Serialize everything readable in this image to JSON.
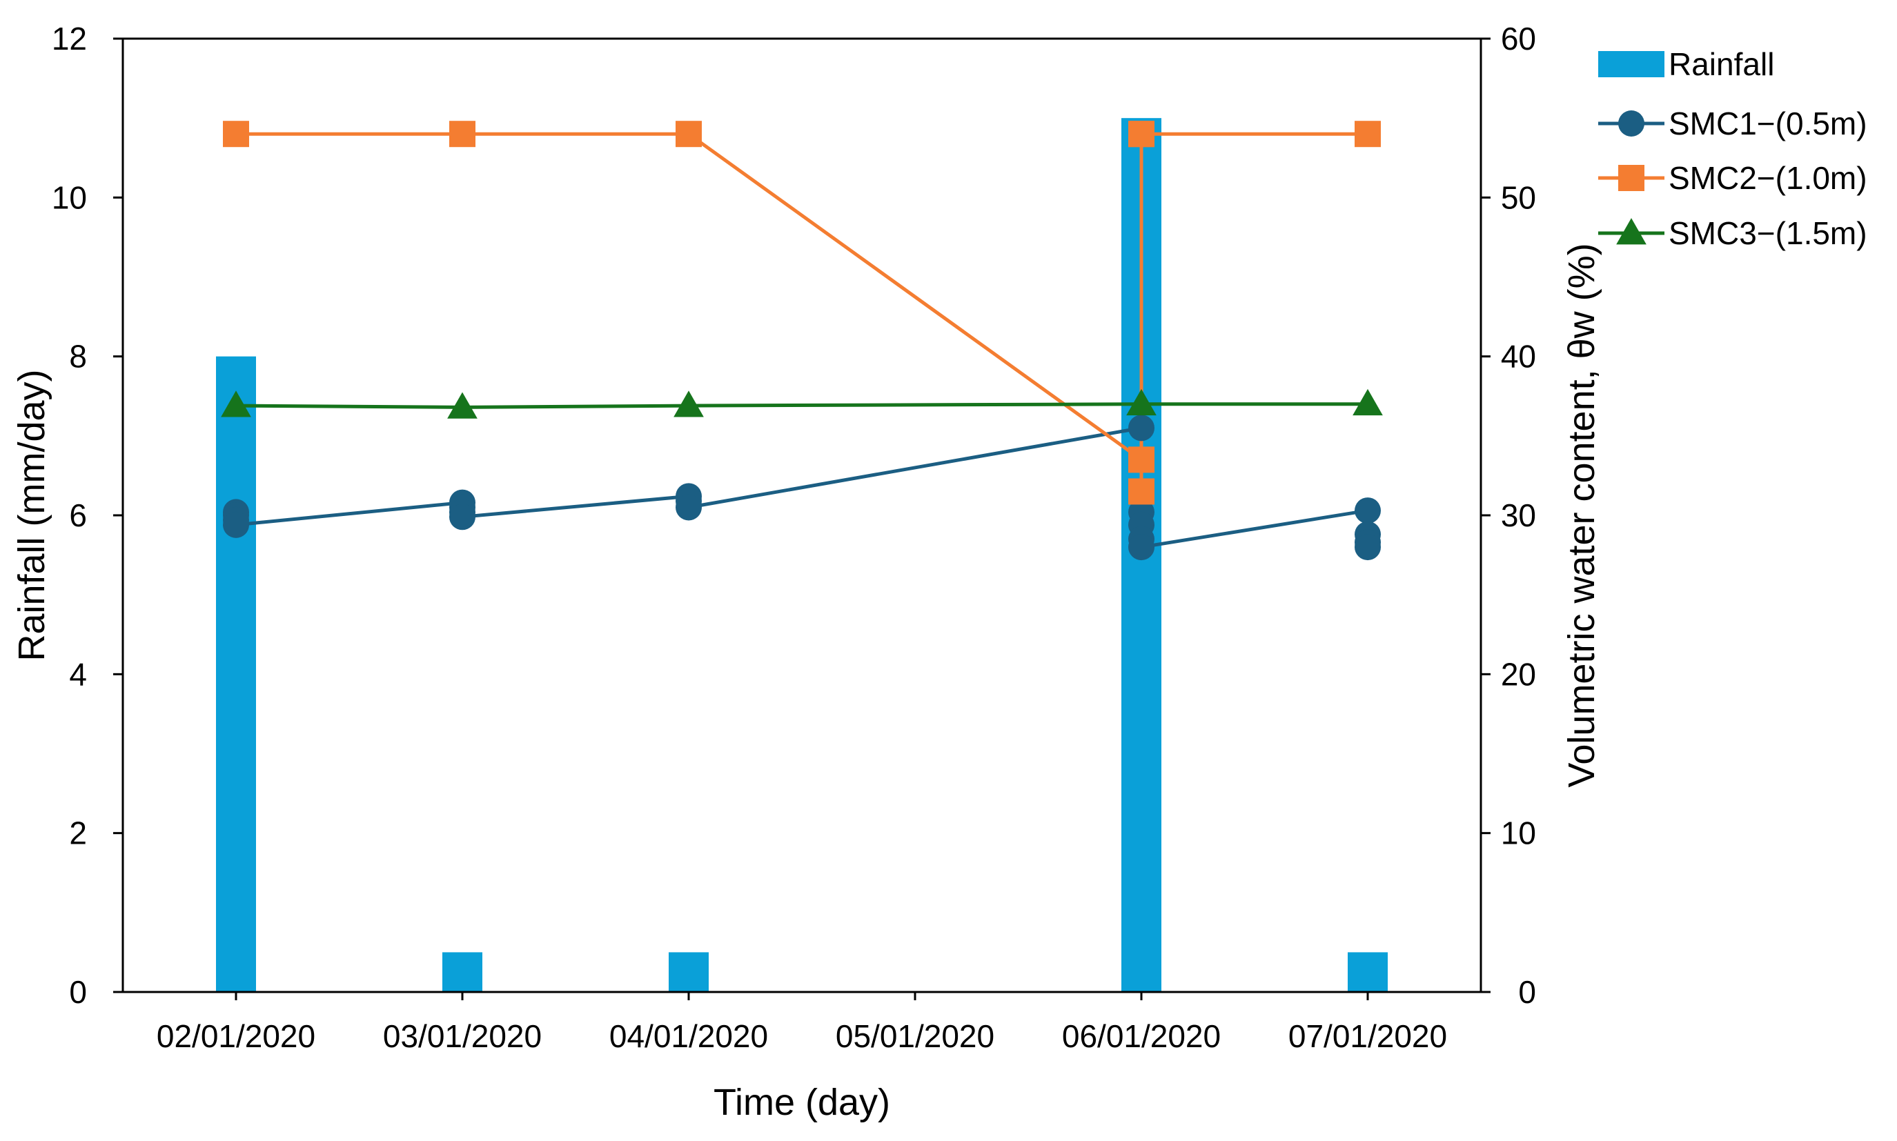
{
  "chart_data": {
    "type": "bar+line",
    "title": "",
    "xlabel": "Time (day)",
    "ylabel_left": "Rainfall (mm/day)",
    "ylabel_right": "Volumetric water content, θw (%)",
    "ylim_left": [
      0,
      12
    ],
    "ylim_right": [
      0,
      60
    ],
    "yticks_left": [
      "0",
      "2",
      "4",
      "6",
      "8",
      "10",
      "12"
    ],
    "yticks_right": [
      "0",
      "10",
      "20",
      "30",
      "40",
      "50",
      "60"
    ],
    "x_tick_labels": [
      "02/01/2020",
      "03/01/2020",
      "04/01/2020",
      "05/01/2020",
      "06/01/2020",
      "07/01/2020"
    ],
    "x_range": [
      0.5,
      6.5
    ],
    "grid": false,
    "legend_position": "top-right, outside plot",
    "rainfall": {
      "name": "Rainfall",
      "color": "#0aa0d8",
      "x": [
        1,
        2,
        3,
        5,
        6
      ],
      "values": [
        8,
        0.5,
        0.5,
        11,
        0.5
      ]
    },
    "series": [
      {
        "name": "SMC1−(0.5m)",
        "color": "#1b5e83",
        "marker": "circle",
        "x": [
          1,
          1,
          1,
          1,
          2,
          2,
          2,
          2,
          3,
          3,
          3,
          5,
          5,
          5,
          5,
          5,
          6,
          6,
          6,
          6
        ],
        "y": [
          30.2,
          30.0,
          29.7,
          29.4,
          30.8,
          30.5,
          30.2,
          29.9,
          31.2,
          30.9,
          30.5,
          35.5,
          30.2,
          29.4,
          28.5,
          28.0,
          30.3,
          28.8,
          28.3,
          28.0
        ]
      },
      {
        "name": "SMC2−(1.0m)",
        "color": "#f47d31",
        "marker": "square",
        "x": [
          1,
          2,
          3,
          5,
          5,
          5,
          5,
          6
        ],
        "y": [
          54,
          54,
          54,
          33.5,
          31.5,
          54,
          54,
          54
        ]
      },
      {
        "name": "SMC3−(1.5m)",
        "color": "#16741c",
        "marker": "triangle",
        "x": [
          1,
          2,
          3,
          5,
          6
        ],
        "y": [
          36.9,
          36.8,
          36.9,
          37.0,
          37.0
        ]
      }
    ]
  }
}
